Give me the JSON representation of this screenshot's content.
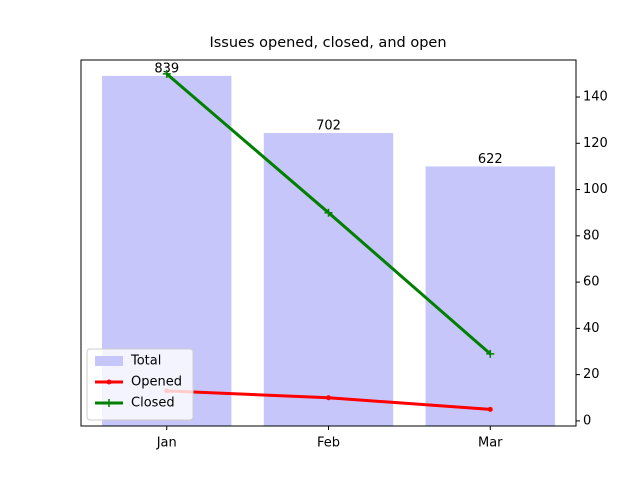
{
  "chart_data": {
    "type": "bar",
    "title": "Issues opened, closed, and open",
    "categories": [
      "Jan",
      "Feb",
      "Mar"
    ],
    "series": [
      {
        "name": "Total",
        "type": "bar",
        "color": "#c6c6fb",
        "values": [
          839,
          702,
          622
        ],
        "data_labels": true
      },
      {
        "name": "Opened",
        "type": "line",
        "marker": "dot",
        "color": "#ff0000",
        "axis": "y2",
        "values": [
          13,
          10,
          5
        ]
      },
      {
        "name": "Closed",
        "type": "line",
        "marker": "plus",
        "color": "#008000",
        "axis": "y2",
        "values": [
          150,
          90,
          29
        ]
      }
    ],
    "ylim": [
      0,
      877
    ],
    "y2lim": [
      -2.2,
      156
    ],
    "y2ticks": [
      0,
      20,
      40,
      60,
      80,
      100,
      120,
      140
    ],
    "legend": "lower left"
  }
}
